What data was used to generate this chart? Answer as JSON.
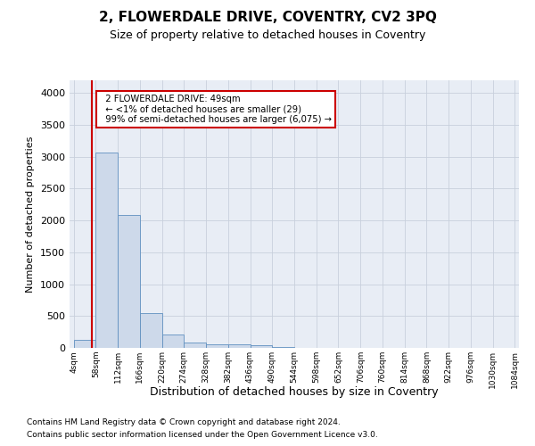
{
  "title": "2, FLOWERDALE DRIVE, COVENTRY, CV2 3PQ",
  "subtitle": "Size of property relative to detached houses in Coventry",
  "xlabel": "Distribution of detached houses by size in Coventry",
  "ylabel": "Number of detached properties",
  "footer1": "Contains HM Land Registry data © Crown copyright and database right 2024.",
  "footer2": "Contains public sector information licensed under the Open Government Licence v3.0.",
  "bar_color": "#cdd9ea",
  "bar_edge_color": "#6090c0",
  "grid_color": "#c8d0dc",
  "background_color": "#e8edf5",
  "annotation_line1": "  2 FLOWERDALE DRIVE: 49sqm",
  "annotation_line2": "  ← <1% of detached houses are smaller (29)",
  "annotation_line3": "  99% of semi-detached houses are larger (6,075) →",
  "vline_x": 49,
  "vline_color": "#cc0000",
  "bin_edges": [
    4,
    58,
    112,
    166,
    220,
    274,
    328,
    382,
    436,
    490,
    544,
    598,
    652,
    706,
    760,
    814,
    868,
    922,
    976,
    1030,
    1084
  ],
  "bar_heights": [
    130,
    3060,
    2090,
    550,
    210,
    85,
    60,
    50,
    40,
    15,
    5,
    3,
    2,
    1,
    1,
    0,
    0,
    0,
    0,
    0
  ],
  "ylim": [
    0,
    4200
  ],
  "yticks": [
    0,
    500,
    1000,
    1500,
    2000,
    2500,
    3000,
    3500,
    4000
  ]
}
